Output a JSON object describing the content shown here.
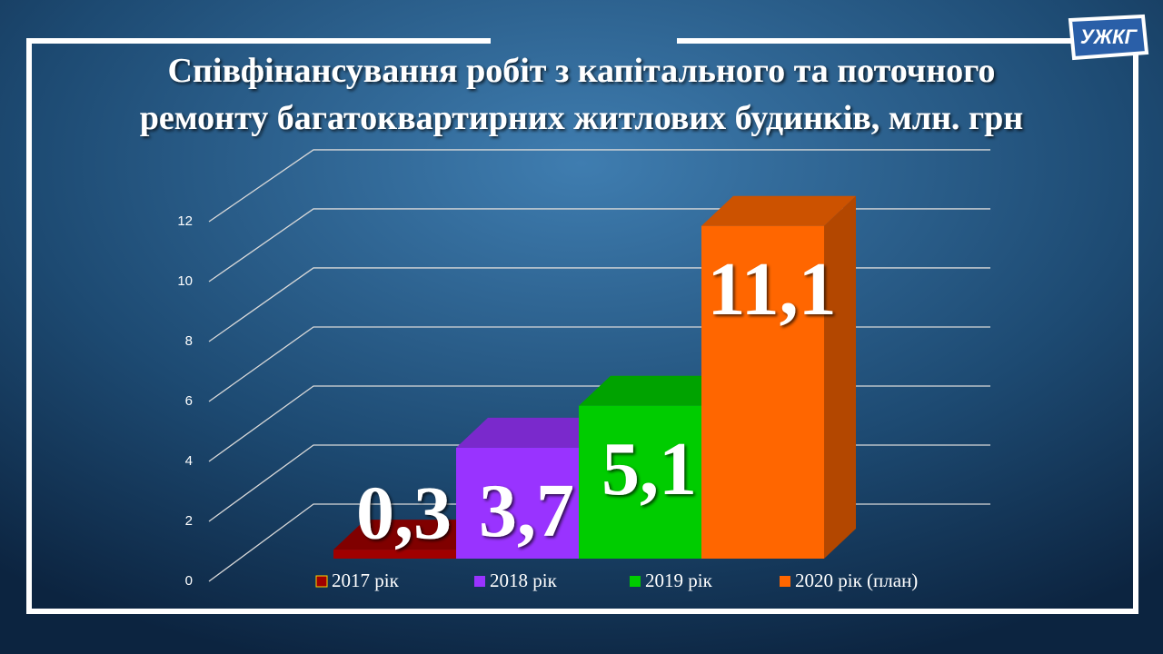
{
  "logo": "УЖКГ",
  "chart_data": {
    "type": "bar3d",
    "title": "Співфінансування робіт з капітального та поточного ремонту багатоквартирних житлових будинків, млн. грн",
    "series": [
      {
        "name": "2017 рік",
        "color": "#a00000",
        "values": [
          0.3
        ],
        "value_labels": [
          "0,3"
        ]
      },
      {
        "name": "2018 рік",
        "color": "#9933ff",
        "values": [
          3.7
        ],
        "value_labels": [
          "3,7"
        ]
      },
      {
        "name": "2019 рік",
        "color": "#00cc00",
        "values": [
          5.1
        ],
        "value_labels": [
          "5,1"
        ]
      },
      {
        "name": "2020 рік (план)",
        "color": "#ff6600",
        "values": [
          11.1
        ],
        "value_labels": [
          "11,1"
        ]
      }
    ],
    "ylim": [
      0,
      12
    ],
    "yticks": [
      0,
      2,
      4,
      6,
      8,
      10,
      12
    ],
    "grid": true
  }
}
